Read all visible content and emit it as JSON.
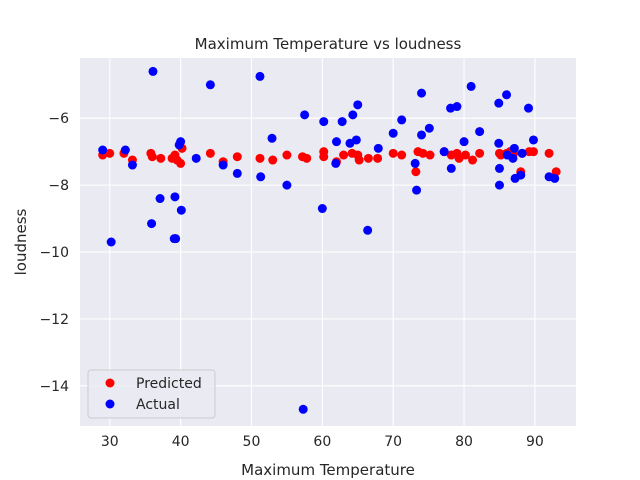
{
  "chart_data": {
    "type": "scatter",
    "title": "Maximum Temperature vs loudness",
    "xlabel": "Maximum Temperature",
    "ylabel": "loudness",
    "xlim": [
      25.8,
      95.8
    ],
    "ylim": [
      -15.2,
      -4.2
    ],
    "xticks": [
      30,
      40,
      50,
      60,
      70,
      80,
      90
    ],
    "yticks": [
      -14,
      -12,
      -10,
      -8,
      -6
    ],
    "ytick_labels": [
      "−14",
      "−12",
      "−10",
      "−8",
      "−6"
    ],
    "grid": true,
    "background": "#eaeaf2",
    "legend_position": "lower left",
    "series": [
      {
        "name": "Predicted",
        "color": "#ff0000",
        "points": [
          [
            29,
            -7.1
          ],
          [
            30,
            -7.05
          ],
          [
            32,
            -7.05
          ],
          [
            33.2,
            -7.25
          ],
          [
            35.8,
            -7.05
          ],
          [
            36,
            -7.15
          ],
          [
            37.2,
            -7.2
          ],
          [
            38.8,
            -7.2
          ],
          [
            39.2,
            -7.1
          ],
          [
            39.5,
            -7.25
          ],
          [
            40,
            -7.35
          ],
          [
            40.2,
            -6.9
          ],
          [
            44.2,
            -7.05
          ],
          [
            46,
            -7.3
          ],
          [
            48,
            -7.15
          ],
          [
            51.2,
            -7.2
          ],
          [
            53,
            -7.25
          ],
          [
            55,
            -7.1
          ],
          [
            57.2,
            -7.15
          ],
          [
            57.8,
            -7.2
          ],
          [
            60.2,
            -7.0
          ],
          [
            60.2,
            -7.15
          ],
          [
            62,
            -7.3
          ],
          [
            63,
            -7.1
          ],
          [
            64.2,
            -7.05
          ],
          [
            65,
            -7.1
          ],
          [
            65.2,
            -7.25
          ],
          [
            66.5,
            -7.2
          ],
          [
            67.8,
            -7.2
          ],
          [
            70,
            -7.05
          ],
          [
            71.2,
            -7.1
          ],
          [
            73.2,
            -7.6
          ],
          [
            73.5,
            -7.0
          ],
          [
            74.2,
            -7.05
          ],
          [
            75.2,
            -7.1
          ],
          [
            77.2,
            -7.0
          ],
          [
            78.2,
            -7.1
          ],
          [
            79,
            -7.05
          ],
          [
            79.3,
            -7.2
          ],
          [
            80.2,
            -7.1
          ],
          [
            81.2,
            -7.25
          ],
          [
            82.2,
            -7.05
          ],
          [
            85,
            -7.05
          ],
          [
            85.2,
            -7.1
          ],
          [
            86,
            -7.05
          ],
          [
            86.5,
            -7.0
          ],
          [
            87,
            -7.05
          ],
          [
            88,
            -7.6
          ],
          [
            88.2,
            -7.05
          ],
          [
            89.2,
            -7.0
          ],
          [
            89.8,
            -7.0
          ],
          [
            92,
            -7.05
          ],
          [
            93,
            -7.6
          ]
        ]
      },
      {
        "name": "Actual",
        "color": "#0000ff",
        "points": [
          [
            29,
            -6.95
          ],
          [
            30.2,
            -9.7
          ],
          [
            32.2,
            -6.95
          ],
          [
            33.2,
            -7.4
          ],
          [
            35.9,
            -9.15
          ],
          [
            36.1,
            -4.6
          ],
          [
            37.1,
            -8.4
          ],
          [
            39.1,
            -9.6
          ],
          [
            39.2,
            -8.35
          ],
          [
            39.3,
            -9.6
          ],
          [
            39.8,
            -6.8
          ],
          [
            40,
            -6.7
          ],
          [
            40.1,
            -8.75
          ],
          [
            42.2,
            -7.2
          ],
          [
            44.2,
            -5.0
          ],
          [
            46,
            -7.4
          ],
          [
            48,
            -7.65
          ],
          [
            51.2,
            -4.75
          ],
          [
            51.3,
            -7.75
          ],
          [
            52.9,
            -6.6
          ],
          [
            55,
            -8.0
          ],
          [
            57.5,
            -5.9
          ],
          [
            57.3,
            -14.7
          ],
          [
            60,
            -8.7
          ],
          [
            60.2,
            -6.1
          ],
          [
            61.9,
            -7.35
          ],
          [
            62,
            -6.7
          ],
          [
            62.8,
            -6.1
          ],
          [
            63.9,
            -6.75
          ],
          [
            64.3,
            -5.9
          ],
          [
            64.8,
            -6.65
          ],
          [
            65,
            -5.6
          ],
          [
            66.4,
            -9.35
          ],
          [
            67.9,
            -6.9
          ],
          [
            70,
            -6.45
          ],
          [
            71.2,
            -6.05
          ],
          [
            73.1,
            -7.35
          ],
          [
            73.3,
            -8.15
          ],
          [
            74,
            -6.5
          ],
          [
            74,
            -5.25
          ],
          [
            75.1,
            -6.3
          ],
          [
            77.2,
            -7.0
          ],
          [
            78.1,
            -5.7
          ],
          [
            78.2,
            -7.5
          ],
          [
            79,
            -5.65
          ],
          [
            80,
            -6.7
          ],
          [
            81,
            -5.05
          ],
          [
            82.2,
            -6.4
          ],
          [
            84.9,
            -6.75
          ],
          [
            84.9,
            -5.55
          ],
          [
            85,
            -8.0
          ],
          [
            85,
            -7.5
          ],
          [
            86,
            -5.3
          ],
          [
            86.1,
            -7.1
          ],
          [
            86.9,
            -7.2
          ],
          [
            87.1,
            -6.9
          ],
          [
            87.2,
            -7.8
          ],
          [
            88,
            -7.7
          ],
          [
            88.2,
            -7.05
          ],
          [
            89.1,
            -5.7
          ],
          [
            89.8,
            -6.65
          ],
          [
            92,
            -7.75
          ],
          [
            92.8,
            -7.8
          ]
        ]
      }
    ]
  }
}
